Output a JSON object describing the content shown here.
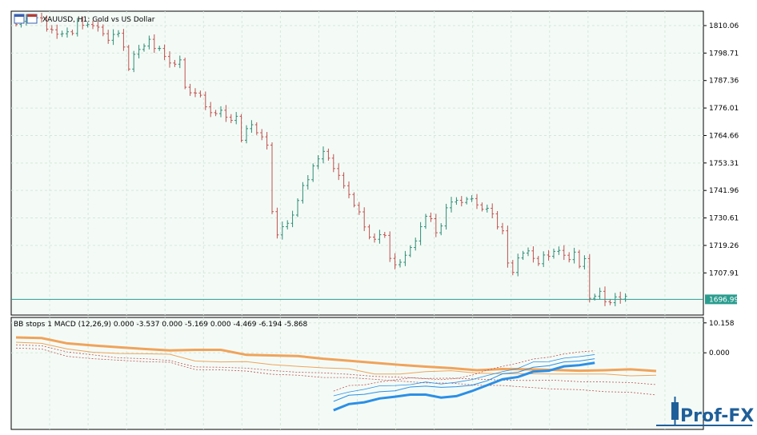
{
  "window": {
    "symbol_title": "XAUUSD, H1:  Gold vs US Dollar",
    "indicator_title": "BB stops 1 MACD (12,26,9) 0.000 -3.537 0.000 -5.169 0.000 -4.469 -6.194 -5.868",
    "current_price_label": "1696.99",
    "logo_text": "Prof-FX"
  },
  "colors": {
    "background": "#f4fbf7",
    "grid": "#d6e6dc",
    "bull": "#2e8b73",
    "bear": "#c0504d",
    "price_line": "#2a9d8f",
    "up_trend": "#2b8fe6",
    "down_trend": "#f0a35a"
  },
  "chart_data": [
    {
      "type": "line",
      "kind": "candlestick",
      "title": "XAUUSD, H1:  Gold vs US Dollar",
      "y_ticks": [
        "1810.06",
        "1798.71",
        "1787.36",
        "1776.01",
        "1764.66",
        "1753.31",
        "1741.96",
        "1730.61",
        "1719.26",
        "1707.91"
      ],
      "ylim": [
        1690.5,
        1816.0
      ],
      "current_price": 1696.99,
      "grid": true,
      "close": [
        1810.5,
        1811.8,
        1812.9,
        1812.4,
        1813.3,
        1813.1,
        1808.6,
        1808.3,
        1806.5,
        1806.7,
        1807.5,
        1806.8,
        1811.8,
        1810.2,
        1810.5,
        1810.0,
        1809.4,
        1806.7,
        1804.0,
        1806.4,
        1806.9,
        1801.2,
        1792.1,
        1798.2,
        1800.2,
        1801.6,
        1804.4,
        1800.6,
        1800.6,
        1797.3,
        1794.6,
        1794.1,
        1795.9,
        1784.6,
        1782.3,
        1782.2,
        1781.3,
        1776.5,
        1774.1,
        1773.7,
        1775.1,
        1772.2,
        1770.9,
        1772.6,
        1762.7,
        1767.5,
        1769.1,
        1765.8,
        1764.1,
        1760.7,
        1733.2,
        1723.6,
        1727.0,
        1728.4,
        1731.8,
        1737.8,
        1744.0,
        1746.4,
        1752.1,
        1755.0,
        1758.1,
        1755.3,
        1751.0,
        1748.2,
        1743.9,
        1740.3,
        1735.8,
        1733.1,
        1726.9,
        1722.7,
        1721.8,
        1723.7,
        1723.4,
        1713.9,
        1711.3,
        1712.3,
        1715.2,
        1718.4,
        1721.1,
        1727.0,
        1731.3,
        1730.3,
        1724.5,
        1727.3,
        1734.8,
        1737.2,
        1737.9,
        1737.0,
        1738.4,
        1738.6,
        1736.0,
        1734.2,
        1734.6,
        1732.3,
        1726.9,
        1725.3,
        1712.0,
        1708.1,
        1714.1,
        1716.1,
        1717.0,
        1713.9,
        1711.7,
        1715.3,
        1714.8,
        1716.8,
        1717.2,
        1715.2,
        1713.4,
        1716.5,
        1710.6,
        1713.8,
        1697.4,
        1698.3,
        1700.3,
        1696.0,
        1695.6,
        1698.0,
        1697.1,
        1698.2
      ]
    },
    {
      "type": "line",
      "title": "BB stops 1 MACD (12,26,9) 0.000 -3.537 0.000 -5.169 0.000 -4.469 -6.194 -5.868",
      "y_ticks": [
        "10.158",
        "0.000"
      ],
      "ylim": [
        -26.0,
        12.0
      ],
      "grid": true,
      "series_values": {
        "down_thick": [
          5.2,
          5.0,
          3.2,
          2.5,
          1.9,
          1.3,
          0.8,
          1.0,
          1.0,
          -0.7,
          -0.9,
          -1.1,
          -2.0,
          -2.7,
          -3.4,
          -4.1,
          -4.7,
          -5.2,
          -5.9,
          -5.5,
          -5.6,
          -5.8,
          -6.1,
          -5.9,
          -5.6,
          -6.2
        ],
        "down_mid": [
          3.6,
          3.2,
          1.3,
          0.2,
          -0.2,
          -0.3,
          -0.5,
          -2.8,
          -3.1,
          -3.0,
          -4.0,
          -4.6,
          -5.1,
          -5.4,
          -7.2,
          -7.2,
          -6.4,
          -6.1,
          -6.9,
          -7.1,
          -7.1,
          -7.2,
          -7.2,
          -7.2,
          -7.8,
          -7.6
        ],
        "down_dash1": [
          2.7,
          2.4,
          0.3,
          -0.7,
          -1.7,
          -2.0,
          -2.6,
          -4.8,
          -4.9,
          -5.2,
          -6.0,
          -6.6,
          -6.8,
          -7.3,
          -8.0,
          -8.3,
          -8.7,
          -8.6,
          -8.9,
          -9.3,
          -9.4,
          -9.3,
          -9.8,
          -9.9,
          -10.1,
          -10.8
        ],
        "down_dash2": [
          1.6,
          1.3,
          -1.2,
          -2.0,
          -2.5,
          -3.0,
          -3.2,
          -5.7,
          -5.8,
          -6.2,
          -7.3,
          -7.6,
          -8.4,
          -8.4,
          -9.0,
          -9.6,
          -10.2,
          -10.3,
          -11.0,
          -11.1,
          -11.7,
          -12.3,
          -12.5,
          -13.2,
          -13.4,
          -14.3
        ],
        "up_thick": [
          -19.5,
          -17.4,
          -16.8,
          -15.5,
          -14.9,
          -14.2,
          -14.2,
          -15.2,
          -14.7,
          -13.0,
          -11.0,
          -9.0,
          -8.2,
          -6.4,
          -6.1,
          -4.6,
          -4.2,
          -3.4
        ],
        "up_mid": [
          -16.5,
          -14.4,
          -14.1,
          -13.2,
          -12.9,
          -11.6,
          -11.3,
          -11.7,
          -11.5,
          -11.0,
          -9.5,
          -7.1,
          -6.6,
          -4.9,
          -4.4,
          -3.1,
          -2.8,
          -2.0
        ],
        "up_dash1": [
          -14.6,
          -13.3,
          -12.4,
          -11.2,
          -11.1,
          -10.8,
          -9.9,
          -10.6,
          -10.0,
          -9.1,
          -7.7,
          -6.4,
          -5.3,
          -3.1,
          -3.0,
          -1.8,
          -1.3,
          -0.6
        ],
        "up_dash2": [
          -13.0,
          -11.1,
          -10.9,
          -9.9,
          -9.2,
          -8.5,
          -8.8,
          -9.1,
          -8.7,
          -7.6,
          -5.9,
          -4.6,
          -3.5,
          -2.1,
          -1.5,
          -0.4,
          0.3,
          0.7
        ]
      }
    }
  ]
}
